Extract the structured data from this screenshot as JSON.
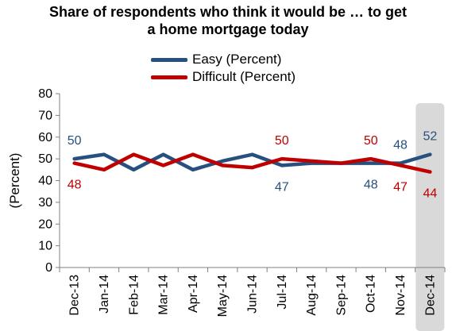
{
  "title": {
    "line1": "Share of respondents who think it would be … to get",
    "line2": "a home mortgage today"
  },
  "colors": {
    "easy": "#27507F",
    "difficult": "#C00000",
    "highlight": "#D9D9D9"
  },
  "chart_data": {
    "type": "line",
    "title": "Share of respondents who think it would be … to get a home mortgage today",
    "xlabel": "",
    "ylabel": "(Percent)",
    "ylim": [
      0,
      80
    ],
    "yticks": [
      0,
      10,
      20,
      30,
      40,
      50,
      60,
      70,
      80
    ],
    "grid": false,
    "legend": "top-center",
    "categories": [
      "Dec-13",
      "Jan-14",
      "Feb-14",
      "Mar-14",
      "Apr-14",
      "May-14",
      "Jun-14",
      "Jul-14",
      "Aug-14",
      "Sep-14",
      "Oct-14",
      "Nov-14",
      "Dec-14"
    ],
    "highlighted_category": "Dec-14",
    "series": [
      {
        "name": "Easy (Percent)",
        "values": [
          50,
          52,
          45,
          52,
          45,
          49,
          52,
          47,
          48,
          48,
          48,
          48,
          52
        ]
      },
      {
        "name": "Difficult (Percent)",
        "values": [
          48,
          45,
          52,
          47,
          52,
          47,
          46,
          50,
          49,
          48,
          50,
          47,
          44
        ]
      }
    ],
    "data_labels": [
      {
        "series": 0,
        "index": 0,
        "text": "50"
      },
      {
        "series": 1,
        "index": 0,
        "text": "48"
      },
      {
        "series": 1,
        "index": 7,
        "text": "50"
      },
      {
        "series": 0,
        "index": 7,
        "text": "47"
      },
      {
        "series": 1,
        "index": 10,
        "text": "50"
      },
      {
        "series": 0,
        "index": 10,
        "text": "48"
      },
      {
        "series": 0,
        "index": 11,
        "text": "48"
      },
      {
        "series": 1,
        "index": 11,
        "text": "47"
      },
      {
        "series": 0,
        "index": 12,
        "text": "52"
      },
      {
        "series": 1,
        "index": 12,
        "text": "44"
      }
    ]
  }
}
